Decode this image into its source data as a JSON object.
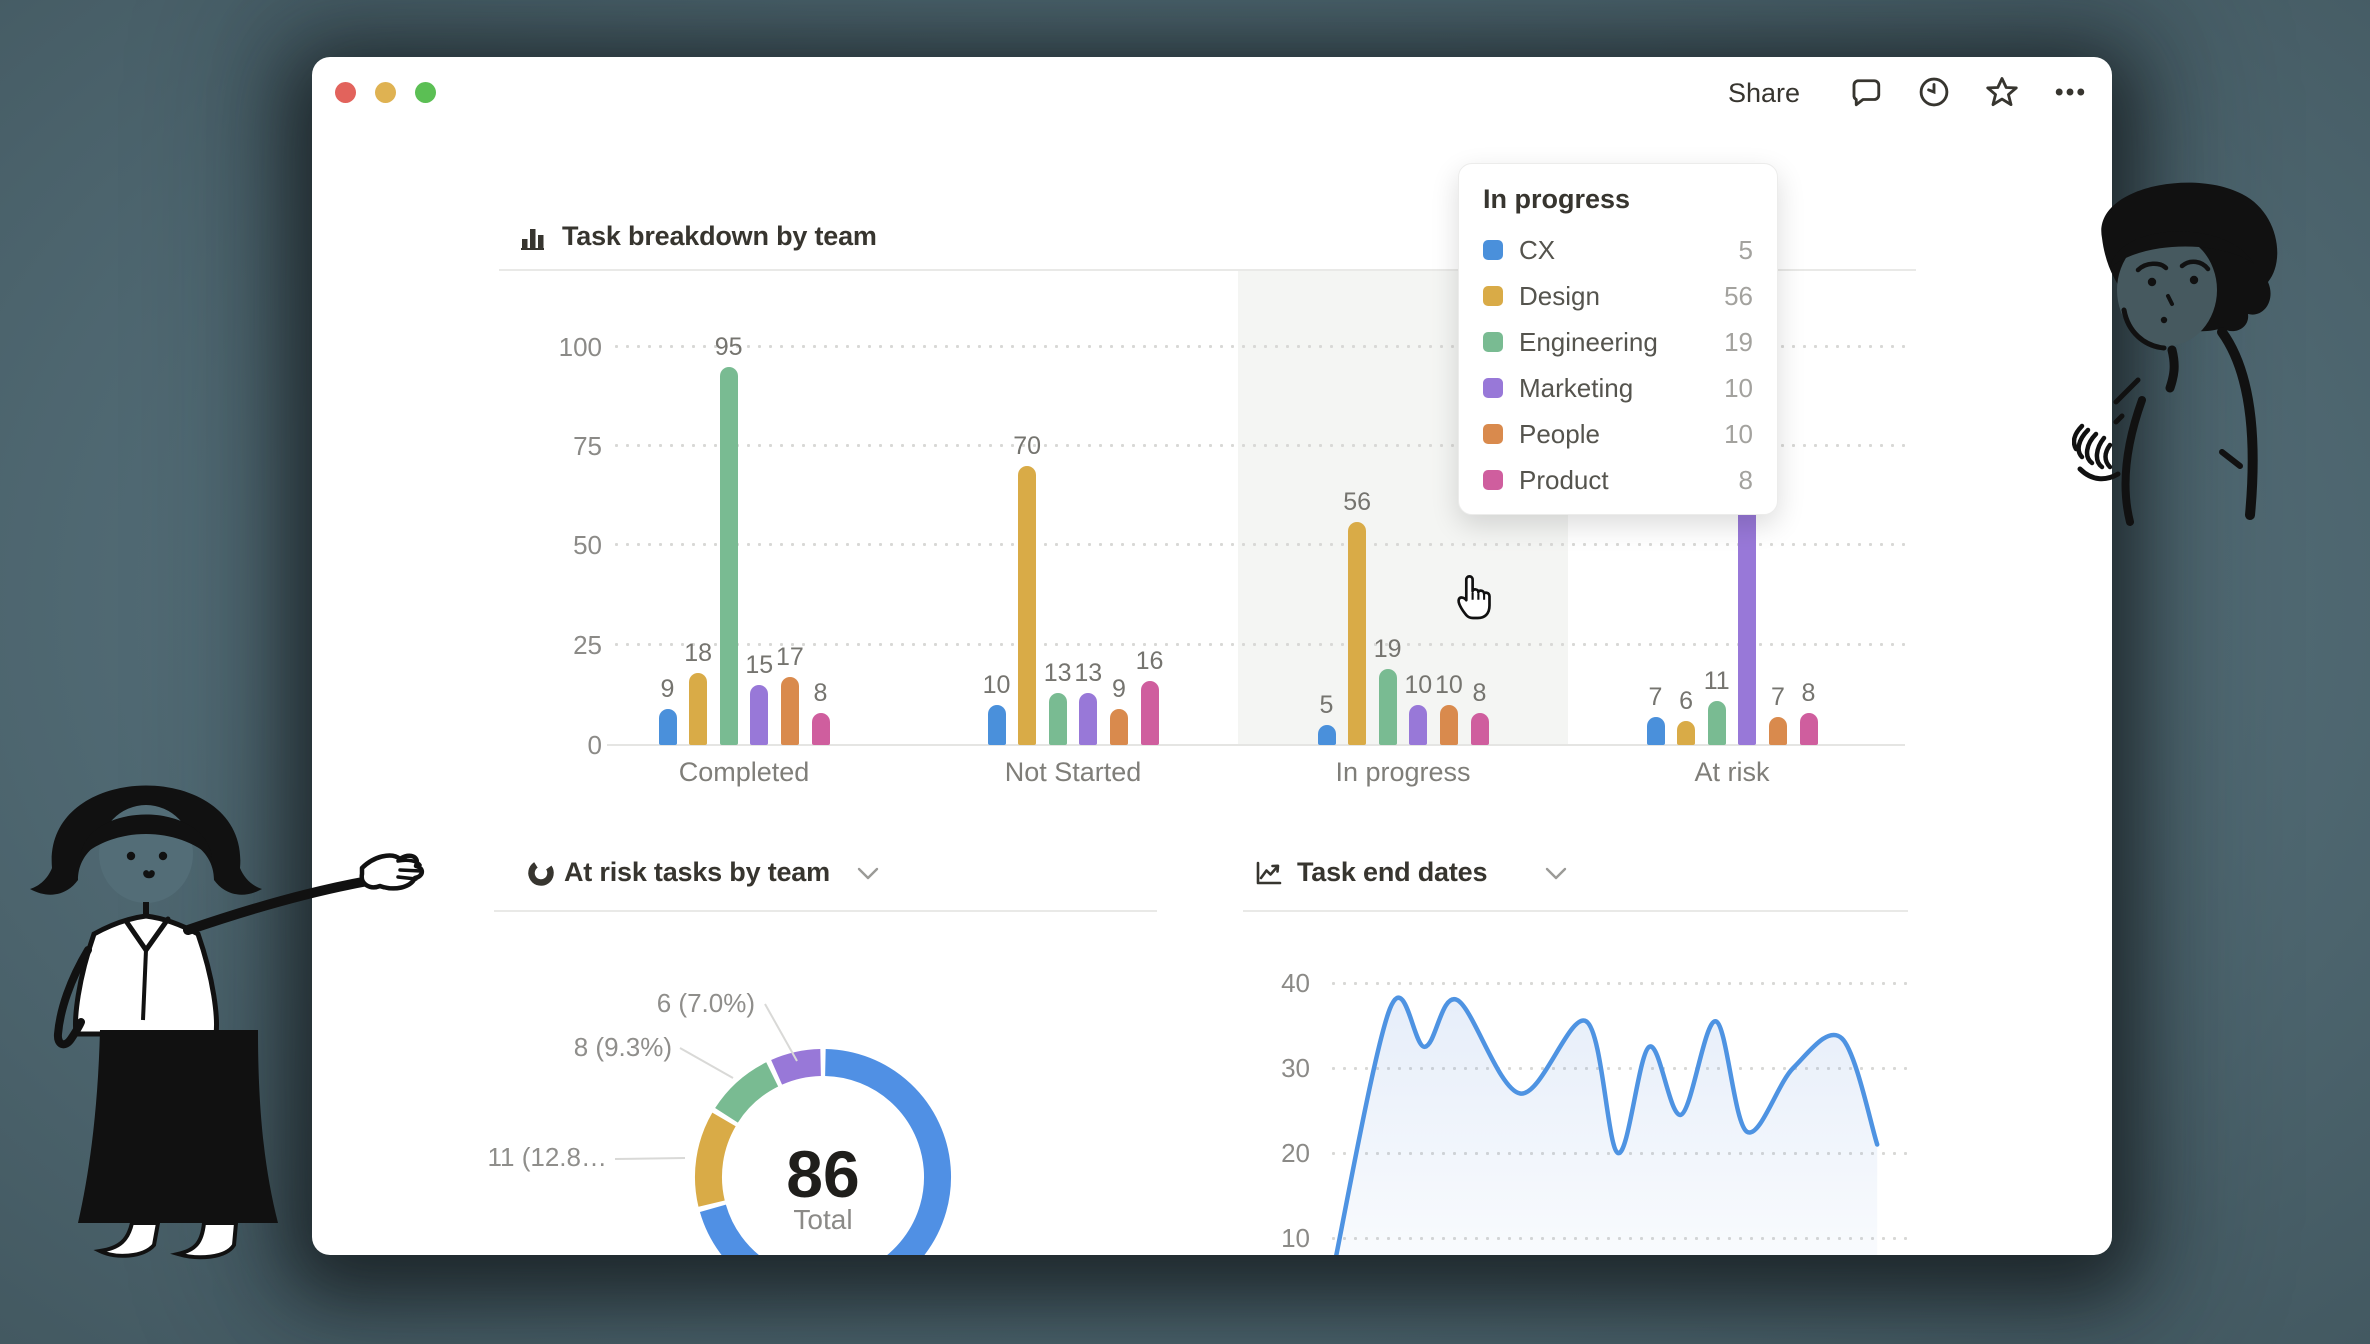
{
  "toolbar": {
    "share_label": "Share",
    "icons": [
      "comment",
      "updates-clock",
      "star",
      "more-options"
    ]
  },
  "tooltip": {
    "title": "In progress",
    "rows": [
      {
        "team": "CX",
        "value": 5
      },
      {
        "team": "Design",
        "value": 56
      },
      {
        "team": "Engineering",
        "value": 19
      },
      {
        "team": "Marketing",
        "value": 10
      },
      {
        "team": "People",
        "value": 10
      },
      {
        "team": "Product",
        "value": 8
      }
    ]
  },
  "chart_data": [
    {
      "type": "bar",
      "title": "Task breakdown by team",
      "categories": [
        "Completed",
        "Not Started",
        "In progress",
        "At risk"
      ],
      "series": [
        {
          "name": "CX",
          "color": "#4a90db",
          "values": [
            9,
            10,
            5,
            7
          ]
        },
        {
          "name": "Design",
          "color": "#d9ab47",
          "values": [
            18,
            70,
            56,
            6
          ]
        },
        {
          "name": "Engineering",
          "color": "#79bb92",
          "values": [
            95,
            13,
            19,
            11
          ]
        },
        {
          "name": "Marketing",
          "color": "#9878d8",
          "values": [
            15,
            13,
            10,
            60
          ]
        },
        {
          "name": "People",
          "color": "#d98a4d",
          "values": [
            17,
            9,
            10,
            7
          ]
        },
        {
          "name": "Product",
          "color": "#cf5e9e",
          "values": [
            8,
            16,
            8,
            8
          ]
        }
      ],
      "ylim": [
        0,
        100
      ],
      "y_ticks": [
        "100",
        "75",
        "50",
        "25",
        "0"
      ],
      "grid": "dotted",
      "value_labels": true,
      "hidden_label": {
        "series": "Marketing",
        "category": "At risk",
        "note": "bar top and value label covered by tooltip"
      },
      "hovered_category": "In progress"
    },
    {
      "type": "pie",
      "title": "At risk tasks by team",
      "donut": true,
      "total": 86,
      "center_value": "86",
      "center_label": "Total",
      "start_angle_deg": 0,
      "slices": [
        {
          "value": 61,
          "color": "#5090e4",
          "label": ""
        },
        {
          "value": 11,
          "color": "#d9ab47",
          "label": "11 (12.8…"
        },
        {
          "value": 8,
          "color": "#79bb92",
          "label": "8 (9.3%)"
        },
        {
          "value": 6,
          "color": "#9878d8",
          "label": "6 (7.0%)"
        }
      ]
    },
    {
      "type": "area",
      "title": "Task end dates",
      "line_color": "#4e93e2",
      "y_ticks": [
        "40",
        "30",
        "20",
        "10"
      ],
      "ylim_ticks": [
        40,
        30,
        20,
        10
      ],
      "points": [
        {
          "x": 0.032,
          "y": 5
        },
        {
          "x": 0.13,
          "y": 37
        },
        {
          "x": 0.188,
          "y": 32.5
        },
        {
          "x": 0.242,
          "y": 38
        },
        {
          "x": 0.347,
          "y": 27
        },
        {
          "x": 0.457,
          "y": 35.5
        },
        {
          "x": 0.51,
          "y": 20
        },
        {
          "x": 0.562,
          "y": 32.5
        },
        {
          "x": 0.615,
          "y": 24.5
        },
        {
          "x": 0.673,
          "y": 35.5
        },
        {
          "x": 0.725,
          "y": 22.5
        },
        {
          "x": 0.802,
          "y": 30
        },
        {
          "x": 0.883,
          "y": 33.5
        },
        {
          "x": 0.942,
          "y": 21
        }
      ]
    }
  ]
}
